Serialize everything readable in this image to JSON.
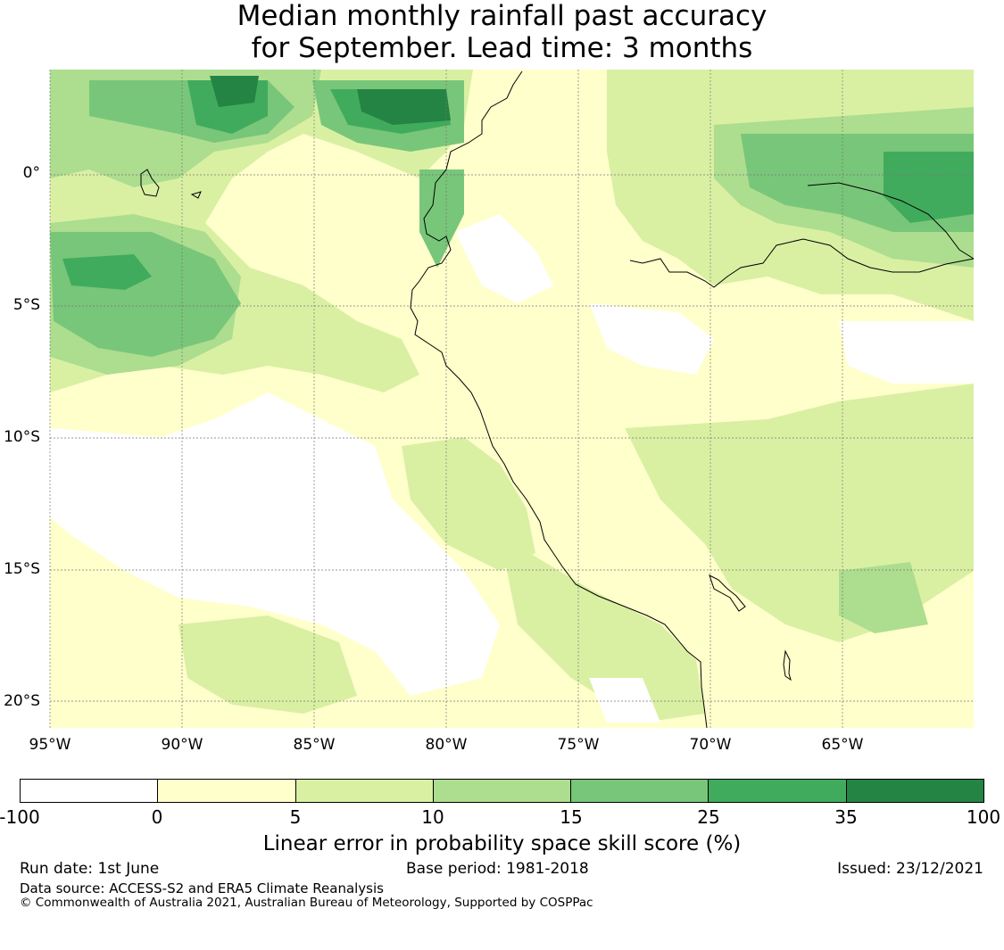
{
  "title": {
    "line1": "Median monthly rainfall past accuracy",
    "line2": "for September. Lead time: 3 months"
  },
  "axes": {
    "lon_labels": [
      "95°W",
      "90°W",
      "85°W",
      "80°W",
      "75°W",
      "70°W",
      "65°W"
    ],
    "lat_labels": [
      "0°",
      "5°S",
      "10°S",
      "15°S",
      "20°S"
    ]
  },
  "colorbar": {
    "label": "Linear error in probability space skill score (%)",
    "ticks": [
      "-100",
      "0",
      "5",
      "10",
      "15",
      "25",
      "35",
      "100"
    ],
    "colors": [
      "#ffffff",
      "#ffffcc",
      "#d9f0a3",
      "#addd8e",
      "#78c679",
      "#41ab5d",
      "#238443"
    ]
  },
  "footer": {
    "run_date": "Run date: 1st June",
    "base_period": "Base period: 1981-2018",
    "issued": "Issued: 23/12/2021",
    "data_source": "Data source: ACCESS-S2 and ERA5 Climate Reanalysis",
    "copyright": "© Commonwealth of Australia 2021, Australian Bureau of Meteorology, Supported by COSPPac"
  }
}
